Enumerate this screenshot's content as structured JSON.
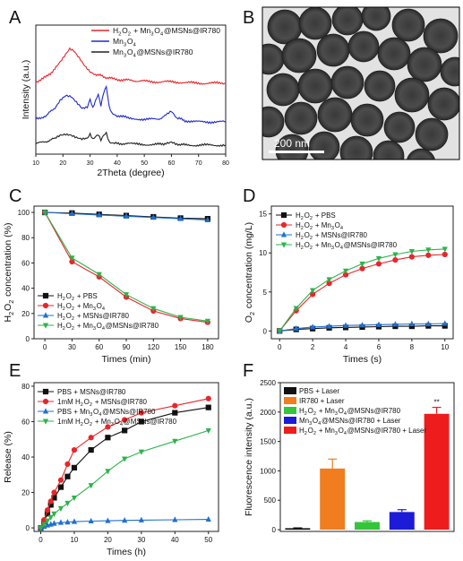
{
  "chart_data": [
    {
      "panel": "A",
      "type": "line",
      "xlabel": "2Theta (degree)",
      "ylabel": "Intensity (a.u.)",
      "xlim": [
        10,
        80
      ],
      "xticks": [
        10,
        20,
        30,
        40,
        50,
        60,
        70,
        80
      ],
      "yticks_shown": false,
      "legend_position": "top-right",
      "series": [
        {
          "name": "H<sub>2</sub>O<sub>2</sub> + Mn<sub>3</sub>O<sub>4</sub>@MSNs@IR780",
          "color": "#e8262a",
          "x": [
            10,
            14,
            17,
            19,
            21,
            22.5,
            24,
            26,
            28,
            30,
            32,
            35,
            38,
            42,
            46,
            50,
            55,
            60,
            65,
            70,
            75,
            80
          ],
          "y": [
            0.56,
            0.6,
            0.66,
            0.72,
            0.78,
            0.82,
            0.8,
            0.74,
            0.68,
            0.64,
            0.62,
            0.6,
            0.585,
            0.575,
            0.57,
            0.565,
            0.56,
            0.56,
            0.555,
            0.55,
            0.55,
            0.55
          ]
        },
        {
          "name": "Mn<sub>3</sub>O<sub>4</sub>",
          "color": "#1f2bcc",
          "x": [
            10,
            14,
            17,
            19,
            21,
            23,
            25,
            27,
            29,
            30,
            31,
            32,
            33,
            34,
            35,
            36,
            37,
            38,
            40,
            44,
            50,
            55,
            58,
            60,
            62,
            65,
            70,
            75,
            80
          ],
          "y": [
            0.27,
            0.3,
            0.36,
            0.42,
            0.45,
            0.44,
            0.4,
            0.36,
            0.37,
            0.43,
            0.36,
            0.41,
            0.46,
            0.37,
            0.47,
            0.52,
            0.37,
            0.32,
            0.3,
            0.28,
            0.27,
            0.27,
            0.3,
            0.33,
            0.28,
            0.26,
            0.25,
            0.25,
            0.25
          ]
        },
        {
          "name": "Mn<sub>3</sub>O<sub>4</sub>@MSNs@IR780",
          "color": "#222222",
          "x": [
            10,
            14,
            17,
            19,
            21,
            23,
            25,
            27,
            29,
            30,
            31,
            32,
            33,
            34,
            35,
            36,
            37,
            38,
            40,
            44,
            50,
            55,
            58,
            60,
            62,
            65,
            70,
            75,
            80
          ],
          "y": [
            0.08,
            0.1,
            0.12,
            0.14,
            0.15,
            0.15,
            0.135,
            0.12,
            0.12,
            0.15,
            0.11,
            0.13,
            0.15,
            0.11,
            0.15,
            0.17,
            0.1,
            0.09,
            0.085,
            0.08,
            0.075,
            0.075,
            0.085,
            0.1,
            0.08,
            0.07,
            0.07,
            0.07,
            0.07
          ]
        }
      ]
    },
    {
      "panel": "B",
      "type": "image",
      "scale_bar": "200 nm"
    },
    {
      "panel": "C",
      "type": "line",
      "xlabel": "Times (min)",
      "ylabel": "H<sub>2</sub>O<sub>2</sub> concentration (%)",
      "xlim": [
        -12,
        192
      ],
      "ylim": [
        0,
        105
      ],
      "xticks": [
        0,
        30,
        60,
        90,
        120,
        150,
        180
      ],
      "yticks": [
        0,
        20,
        40,
        60,
        80,
        100
      ],
      "legend_position": "bottom-left",
      "x": [
        0,
        30,
        60,
        90,
        120,
        150,
        180
      ],
      "series": [
        {
          "name": "H<sub>2</sub>O<sub>2</sub> + PBS",
          "color": "#111111",
          "marker": "square",
          "values": [
            100,
            99.5,
            98.5,
            97.5,
            96.5,
            95.5,
            95
          ]
        },
        {
          "name": "H<sub>2</sub>O<sub>2</sub> + Mn<sub>3</sub>O<sub>4</sub>",
          "color": "#e8262a",
          "marker": "circle",
          "values": [
            100,
            61,
            49,
            33,
            22,
            16,
            13
          ]
        },
        {
          "name": "H<sub>2</sub>O<sub>2</sub> + MSNs@IR780",
          "color": "#2070d0",
          "marker": "triangle",
          "values": [
            100,
            99,
            98,
            97,
            96,
            95,
            94
          ]
        },
        {
          "name": "H<sub>2</sub>O<sub>2</sub> + Mn<sub>3</sub>O<sub>4</sub>@MSNs@IR780",
          "color": "#2db34a",
          "marker": "triangle-down",
          "values": [
            100,
            64,
            51,
            35,
            24,
            17,
            14
          ]
        }
      ]
    },
    {
      "panel": "D",
      "type": "line",
      "xlabel": "Times (s)",
      "ylabel": "O<sub>2</sub> concentration (mg/L)",
      "xlim": [
        -0.5,
        10.5
      ],
      "ylim": [
        -1,
        16
      ],
      "xticks": [
        0,
        2,
        4,
        6,
        8,
        10
      ],
      "yticks": [
        0,
        5,
        10,
        15
      ],
      "legend_position": "top-left",
      "x": [
        0,
        1,
        2,
        3,
        4,
        5,
        6,
        7,
        8,
        9,
        10
      ],
      "series": [
        {
          "name": "H<sub>2</sub>O<sub>2</sub> + PBS",
          "color": "#111111",
          "marker": "square",
          "values": [
            0,
            0.2,
            0.3,
            0.4,
            0.45,
            0.5,
            0.55,
            0.6,
            0.6,
            0.65,
            0.65
          ]
        },
        {
          "name": "H<sub>2</sub>O<sub>2</sub> + Mn<sub>3</sub>O<sub>4</sub>",
          "color": "#e8262a",
          "marker": "circle",
          "values": [
            0,
            2.6,
            4.7,
            6.1,
            7.2,
            8.0,
            8.6,
            9.1,
            9.5,
            9.7,
            9.8
          ]
        },
        {
          "name": "H<sub>2</sub>O<sub>2</sub> + MSNs@IR780",
          "color": "#2070d0",
          "marker": "triangle",
          "values": [
            0,
            0.3,
            0.5,
            0.6,
            0.7,
            0.75,
            0.8,
            0.85,
            0.9,
            0.9,
            0.95
          ]
        },
        {
          "name": "H<sub>2</sub>O<sub>2</sub> + Mn<sub>3</sub>O<sub>4</sub>@MSNs@IR780",
          "color": "#2db34a",
          "marker": "triangle-down",
          "values": [
            0,
            2.9,
            5.2,
            6.6,
            7.7,
            8.6,
            9.3,
            9.8,
            10.2,
            10.4,
            10.5
          ]
        }
      ]
    },
    {
      "panel": "E",
      "type": "line",
      "xlabel": "Times (h)",
      "ylabel": "Release (%)",
      "xlim": [
        -2,
        53
      ],
      "ylim": [
        -2,
        82
      ],
      "xticks": [
        0,
        10,
        20,
        30,
        40,
        50
      ],
      "yticks": [
        0,
        20,
        40,
        60,
        80
      ],
      "legend_position": "top-left",
      "x": [
        0,
        1,
        2,
        3,
        4,
        6,
        8,
        10,
        15,
        20,
        25,
        30,
        40,
        50
      ],
      "series": [
        {
          "name": "PBS + MSNs@IR780",
          "color": "#111111",
          "marker": "square",
          "values": [
            0,
            3.5,
            8,
            13,
            17,
            23,
            29,
            34,
            44,
            51,
            55,
            60,
            65,
            68
          ]
        },
        {
          "name": "1mM H<sub>2</sub>O<sub>2</sub> + MSNs@IR780",
          "color": "#e8262a",
          "marker": "circle",
          "values": [
            0,
            4.5,
            10,
            15,
            20,
            27,
            36,
            44,
            51,
            57,
            61,
            65,
            69,
            73
          ]
        },
        {
          "name": "PBS + Mn<sub>3</sub>O<sub>4</sub>@MSNs@IR780",
          "color": "#2070d0",
          "marker": "triangle",
          "values": [
            0,
            0.8,
            1.5,
            2,
            2.5,
            3,
            3.2,
            3.5,
            3.8,
            4,
            4.2,
            4.4,
            4.6,
            4.8
          ]
        },
        {
          "name": "1mM H<sub>2</sub>O<sub>2</sub> + Mn<sub>3</sub>O<sub>4</sub>@MSNs@IR780",
          "color": "#2db34a",
          "marker": "triangle-down",
          "values": [
            0,
            2,
            4,
            6,
            8,
            11,
            14,
            17,
            24,
            32,
            39,
            43,
            49,
            55
          ]
        }
      ]
    },
    {
      "panel": "F",
      "type": "bar",
      "xlabel": "",
      "ylabel": "Fluorescence intensity (a.u.)",
      "ylim": [
        -30,
        2500
      ],
      "yticks": [
        0,
        500,
        1000,
        1500,
        2000,
        2500
      ],
      "legend_position": "top-left",
      "significance": "**",
      "series": [
        {
          "name": "PBS + Laser",
          "color": "#111111",
          "value": 25,
          "error": 5
        },
        {
          "name": "IR780 + Laser",
          "color": "#f07d1e",
          "value": 1040,
          "error": 160
        },
        {
          "name": "H<sub>2</sub>O<sub>2</sub> + Mn<sub>3</sub>O<sub>4</sub>@MSNs@IR780",
          "color": "#33c53a",
          "value": 130,
          "error": 20
        },
        {
          "name": "Mn<sub>3</sub>O<sub>4</sub>@MSNs@IR780 + Laser",
          "color": "#1b1bd8",
          "value": 300,
          "error": 40
        },
        {
          "name": "H<sub>2</sub>O<sub>2</sub> + Mn<sub>3</sub>O<sub>4</sub>@MSNs@IR780 + Laser",
          "color": "#ee1c1c",
          "value": 1970,
          "error": 110
        }
      ]
    }
  ]
}
